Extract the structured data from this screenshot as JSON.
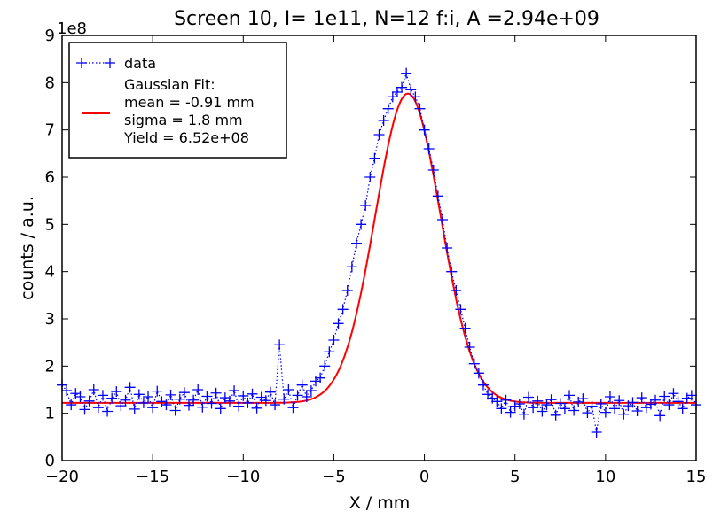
{
  "chart_data": {
    "type": "scatter",
    "title": "Screen 10, I= 1e11, N=12 f:i, A =2.94e+09",
    "xlabel": "X / mm",
    "ylabel": "counts / a.u.",
    "y_multiplier_label": "1e8",
    "y_scale": 100000000,
    "xlim": [
      -20,
      15
    ],
    "ylim": [
      0,
      900000000
    ],
    "x_ticks": [
      -20,
      -15,
      -10,
      -5,
      0,
      5,
      10,
      15
    ],
    "x_tick_labels": [
      "−20",
      "−15",
      "−10",
      "−5",
      "0",
      "5",
      "10",
      "15"
    ],
    "y_ticks": [
      0,
      100000000,
      200000000,
      300000000,
      400000000,
      500000000,
      600000000,
      700000000,
      800000000,
      900000000
    ],
    "y_tick_labels": [
      "0",
      "1",
      "2",
      "3",
      "4",
      "5",
      "6",
      "7",
      "8",
      "9"
    ],
    "grid": false,
    "legend_position": "top-left",
    "legend": {
      "data_label": "data",
      "fit_lines": [
        "Gaussian Fit:",
        "mean = -0.91 mm",
        "sigma = 1.8 mm",
        "Yield = 6.52e+08"
      ]
    },
    "series": [
      {
        "name": "data",
        "style": "blue '+' markers with dotted line",
        "color": "#0000ff",
        "x": [
          -20.0,
          -19.75,
          -19.5,
          -19.25,
          -19.0,
          -18.75,
          -18.5,
          -18.25,
          -18.0,
          -17.75,
          -17.5,
          -17.25,
          -17.0,
          -16.75,
          -16.5,
          -16.25,
          -16.0,
          -15.75,
          -15.5,
          -15.25,
          -15.0,
          -14.75,
          -14.5,
          -14.25,
          -14.0,
          -13.75,
          -13.5,
          -13.25,
          -13.0,
          -12.75,
          -12.5,
          -12.25,
          -12.0,
          -11.75,
          -11.5,
          -11.25,
          -11.0,
          -10.75,
          -10.5,
          -10.25,
          -10.0,
          -9.75,
          -9.5,
          -9.25,
          -9.0,
          -8.75,
          -8.5,
          -8.25,
          -8.0,
          -7.75,
          -7.5,
          -7.25,
          -7.0,
          -6.75,
          -6.5,
          -6.25,
          -6.0,
          -5.75,
          -5.5,
          -5.25,
          -5.0,
          -4.75,
          -4.5,
          -4.25,
          -4.0,
          -3.75,
          -3.5,
          -3.25,
          -3.0,
          -2.75,
          -2.5,
          -2.25,
          -2.0,
          -1.75,
          -1.5,
          -1.25,
          -1.0,
          -0.75,
          -0.5,
          -0.25,
          0.0,
          0.25,
          0.5,
          0.75,
          1.0,
          1.25,
          1.5,
          1.75,
          2.0,
          2.25,
          2.5,
          2.75,
          3.0,
          3.25,
          3.5,
          3.75,
          4.0,
          4.25,
          4.5,
          4.75,
          5.0,
          5.25,
          5.5,
          5.75,
          6.0,
          6.25,
          6.5,
          6.75,
          7.0,
          7.25,
          7.5,
          7.75,
          8.0,
          8.25,
          8.5,
          8.75,
          9.0,
          9.25,
          9.5,
          9.75,
          10.0,
          10.25,
          10.5,
          10.75,
          11.0,
          11.25,
          11.5,
          11.75,
          12.0,
          12.25,
          12.5,
          12.75,
          13.0,
          13.25,
          13.5,
          13.75,
          14.0,
          14.25,
          14.5,
          14.75,
          15.0
        ],
        "y": [
          160000000,
          148000000,
          118000000,
          142000000,
          135000000,
          108000000,
          126000000,
          150000000,
          112000000,
          138000000,
          104000000,
          132000000,
          146000000,
          116000000,
          128000000,
          155000000,
          109000000,
          140000000,
          122000000,
          135000000,
          112000000,
          147000000,
          125000000,
          118000000,
          139000000,
          106000000,
          130000000,
          144000000,
          117000000,
          128000000,
          150000000,
          113000000,
          136000000,
          121000000,
          143000000,
          110000000,
          133000000,
          126000000,
          148000000,
          115000000,
          137000000,
          122000000,
          141000000,
          111000000,
          134000000,
          127000000,
          145000000,
          118000000,
          245000000,
          130000000,
          150000000,
          112000000,
          138000000,
          160000000,
          135000000,
          148000000,
          168000000,
          175000000,
          200000000,
          230000000,
          255000000,
          290000000,
          320000000,
          360000000,
          410000000,
          460000000,
          500000000,
          540000000,
          600000000,
          640000000,
          690000000,
          720000000,
          745000000,
          770000000,
          780000000,
          790000000,
          820000000,
          785000000,
          770000000,
          745000000,
          700000000,
          660000000,
          615000000,
          560000000,
          510000000,
          450000000,
          400000000,
          360000000,
          320000000,
          280000000,
          240000000,
          205000000,
          185000000,
          160000000,
          140000000,
          132000000,
          125000000,
          110000000,
          128000000,
          102000000,
          115000000,
          120000000,
          98000000,
          134000000,
          112000000,
          126000000,
          104000000,
          118000000,
          129000000,
          96000000,
          121000000,
          110000000,
          138000000,
          106000000,
          124000000,
          131000000,
          101000000,
          115000000,
          60000000,
          120000000,
          102000000,
          135000000,
          110000000,
          127000000,
          98000000,
          116000000,
          123000000,
          105000000,
          133000000,
          112000000,
          119000000,
          128000000,
          95000000,
          136000000,
          118000000,
          142000000,
          125000000,
          110000000,
          132000000,
          138000000,
          118000000
        ]
      },
      {
        "name": "Gaussian Fit",
        "style": "red solid line",
        "color": "#ff0000",
        "mean": -0.91,
        "sigma": 1.8,
        "amplitude": 655000000,
        "baseline": 122000000
      }
    ]
  }
}
